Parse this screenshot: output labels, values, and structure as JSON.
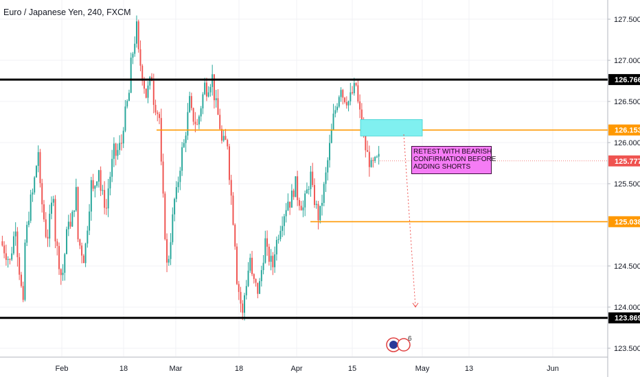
{
  "title": "Euro / Japanese Yen, 240, FXCM",
  "colors": {
    "up": "#26a69a",
    "down": "#ef5350",
    "support_resistance": "#000000",
    "level_line": "#ff9800",
    "zone_fill": "#80f0f0",
    "annotation_bg": "#f57cf5",
    "projection": "#ef5350"
  },
  "chart_data": {
    "type": "candlestick",
    "symbol": "Euro / Japanese Yen",
    "timeframe": "240",
    "source": "FXCM",
    "ylim": [
      123.4,
      127.7
    ],
    "y_ticks": [
      "127.500",
      "127.000",
      "126.500",
      "126.000",
      "125.500",
      "124.500",
      "124.000",
      "123.500"
    ],
    "x_ticks": [
      "Feb",
      "18",
      "Mar",
      "18",
      "Apr",
      "15",
      "May",
      "13",
      "Jun"
    ],
    "horizontal_levels": [
      {
        "value": 126.766,
        "label": "126.766",
        "style": "black-thick"
      },
      {
        "value": 126.153,
        "label": "126.153",
        "style": "orange"
      },
      {
        "value": 125.038,
        "label": "125.038",
        "style": "orange"
      },
      {
        "value": 123.869,
        "label": "123.869",
        "style": "black-thick"
      }
    ],
    "current_price": {
      "value": 125.777,
      "label": "125.777"
    },
    "zone": {
      "y_top": 126.28,
      "y_bottom": 126.08
    },
    "annotation_lines": [
      "RETEST WITH BEARISH",
      "CONFIRMATION BEFORE",
      "ADDING SHORTS"
    ],
    "projection": {
      "from": 126.1,
      "to": 124.0
    },
    "price_path": [
      [
        124.8,
        124.6
      ],
      [
        124.4,
        125.0
      ],
      [
        124.9,
        124.0
      ],
      [
        124.6,
        125.3
      ],
      [
        125.2,
        125.9
      ],
      [
        125.6,
        124.9
      ],
      [
        124.7,
        125.4
      ],
      [
        125.0,
        124.4
      ],
      [
        124.2,
        125.1
      ],
      [
        124.8,
        125.4
      ],
      [
        124.9,
        124.6
      ],
      [
        124.5,
        125.5
      ],
      [
        125.3,
        125.7
      ],
      [
        125.5,
        125.2
      ],
      [
        125.3,
        125.9
      ],
      [
        125.8,
        126.0
      ],
      [
        126.1,
        126.6
      ],
      [
        126.8,
        127.4
      ],
      [
        127.2,
        126.7
      ],
      [
        126.5,
        126.8
      ],
      [
        126.6,
        126.3
      ],
      [
        126.1,
        124.5
      ],
      [
        124.4,
        125.3
      ],
      [
        125.2,
        125.9
      ],
      [
        125.8,
        126.5
      ],
      [
        126.4,
        126.2
      ],
      [
        126.2,
        126.7
      ],
      [
        126.6,
        126.8
      ],
      [
        126.7,
        126.2
      ],
      [
        126.0,
        126.0
      ],
      [
        125.9,
        124.8
      ],
      [
        124.5,
        123.9
      ],
      [
        124.0,
        124.6
      ],
      [
        124.4,
        124.2
      ],
      [
        124.1,
        124.8
      ],
      [
        124.7,
        124.5
      ],
      [
        124.6,
        125.0
      ],
      [
        125.0,
        125.3
      ],
      [
        125.2,
        125.5
      ],
      [
        125.4,
        125.2
      ],
      [
        125.2,
        125.6
      ],
      [
        125.5,
        125.1
      ],
      [
        125.0,
        125.6
      ],
      [
        125.6,
        126.3
      ],
      [
        126.3,
        126.7
      ],
      [
        126.6,
        126.5
      ],
      [
        126.5,
        126.7
      ],
      [
        126.6,
        126.1
      ],
      [
        126.0,
        125.7
      ],
      [
        125.7,
        125.8
      ]
    ],
    "events_badge": "6"
  }
}
